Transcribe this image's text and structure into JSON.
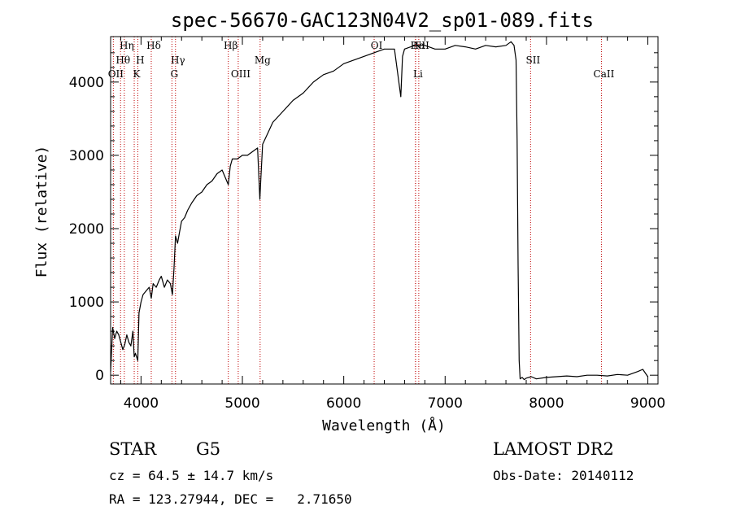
{
  "chart_data": {
    "type": "line",
    "title": "spec-56670-GAC123N04V2_sp01-089.fits",
    "xlabel": "Wavelength (Å)",
    "ylabel": "Flux (relative)",
    "xlim": [
      3700,
      9100
    ],
    "ylim": [
      -120,
      4620
    ],
    "xticks": [
      4000,
      5000,
      6000,
      7000,
      8000,
      9000
    ],
    "yticks": [
      0,
      1000,
      2000,
      3000,
      4000
    ],
    "grid": false,
    "series": [
      {
        "x": [
          3700,
          3720,
          3740,
          3760,
          3780,
          3800,
          3820,
          3840,
          3860,
          3880,
          3900,
          3920,
          3933,
          3945,
          3968,
          3980,
          4000,
          4020,
          4050,
          4080,
          4101,
          4120,
          4150,
          4180,
          4200,
          4230,
          4260,
          4290,
          4310,
          4325,
          4340,
          4360,
          4380,
          4400,
          4430,
          4460,
          4500,
          4550,
          4600,
          4650,
          4700,
          4750,
          4800,
          4861,
          4880,
          4900,
          4950,
          5000,
          5050,
          5100,
          5150,
          5172,
          5183,
          5200,
          5250,
          5300,
          5400,
          5500,
          5600,
          5700,
          5800,
          5900,
          6000,
          6100,
          6200,
          6300,
          6400,
          6500,
          6563,
          6580,
          6600,
          6700,
          6800,
          6900,
          7000,
          7100,
          7200,
          7300,
          7400,
          7500,
          7600,
          7650,
          7680,
          7700,
          7710,
          7720,
          7730,
          7740,
          7760,
          7780,
          7800,
          7850,
          7900,
          8000,
          8100,
          8200,
          8300,
          8400,
          8500,
          8600,
          8700,
          8800,
          8900,
          8950,
          9000
        ],
        "y": [
          50,
          650,
          500,
          600,
          550,
          450,
          350,
          420,
          550,
          450,
          400,
          600,
          250,
          300,
          200,
          850,
          1000,
          1100,
          1150,
          1200,
          1050,
          1250,
          1200,
          1300,
          1350,
          1200,
          1300,
          1250,
          1100,
          1450,
          1900,
          1800,
          1950,
          2100,
          2150,
          2250,
          2350,
          2450,
          2500,
          2600,
          2650,
          2750,
          2800,
          2600,
          2850,
          2950,
          2950,
          3000,
          3000,
          3050,
          3100,
          2400,
          2700,
          3150,
          3300,
          3450,
          3600,
          3750,
          3850,
          4000,
          4100,
          4150,
          4250,
          4300,
          4350,
          4400,
          4450,
          4450,
          3800,
          4350,
          4450,
          4500,
          4500,
          4450,
          4450,
          4500,
          4480,
          4450,
          4500,
          4480,
          4500,
          4550,
          4500,
          4300,
          3200,
          1500,
          200,
          -50,
          -30,
          -60,
          -40,
          -20,
          -50,
          -30,
          -20,
          -10,
          -20,
          0,
          0,
          -10,
          10,
          0,
          50,
          80,
          -20
        ]
      }
    ],
    "lines": [
      {
        "label": "Hη",
        "x": 3835,
        "row": 0
      },
      {
        "label": "Hθ",
        "x": 3798,
        "row": 1
      },
      {
        "label": "OII",
        "x": 3727,
        "row": 2
      },
      {
        "label": "H",
        "x": 3968,
        "row": 1
      },
      {
        "label": "K",
        "x": 3933,
        "row": 2
      },
      {
        "label": "Hδ",
        "x": 4101,
        "row": 0
      },
      {
        "label": "Hγ",
        "x": 4340,
        "row": 1
      },
      {
        "label": "G",
        "x": 4305,
        "row": 2
      },
      {
        "label": "Hβ",
        "x": 4861,
        "row": 0
      },
      {
        "label": "OIII",
        "x": 4959,
        "row": 2
      },
      {
        "label": "Mg",
        "x": 5175,
        "row": 1
      },
      {
        "label": "OI",
        "x": 6300,
        "row": 0
      },
      {
        "label": "Hα",
        "x": 6708,
        "row": 0
      },
      {
        "label": "NII",
        "x": 6740,
        "row": 0
      },
      {
        "label": "Li",
        "x": 6708,
        "row": 2
      },
      {
        "label": "SII",
        "x": 7843,
        "row": 1
      },
      {
        "label": "CaII",
        "x": 8542,
        "row": 2
      }
    ],
    "annotations": {
      "class": "STAR",
      "subclass": "G5",
      "cz": "cz = 64.5 ± 14.7 km/s",
      "coords": "RA = 123.27944, DEC =   2.71650",
      "survey": "LAMOST DR2",
      "obs_date": "Obs-Date: 20140112"
    }
  }
}
